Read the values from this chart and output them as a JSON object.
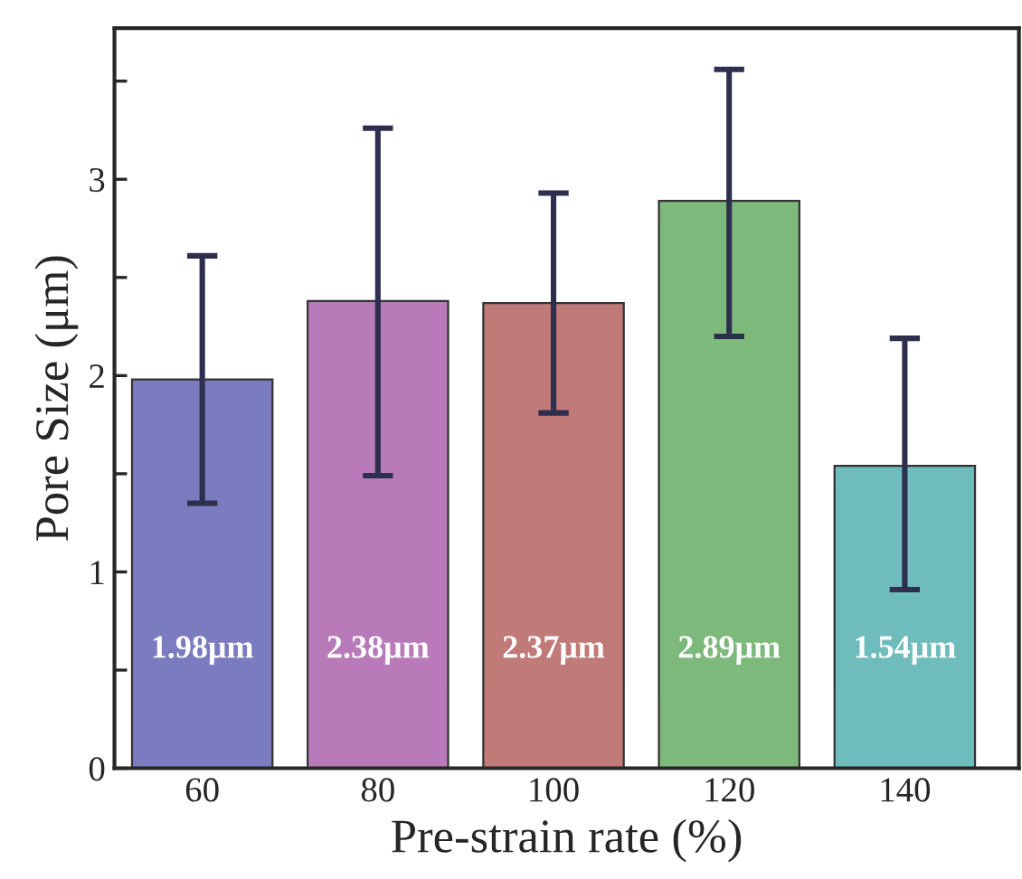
{
  "chart_data": {
    "type": "bar",
    "xlabel": "Pre-strain rate (%)",
    "ylabel": "Pore Size (μm)",
    "categories": [
      "60",
      "80",
      "100",
      "120",
      "140"
    ],
    "values": [
      1.98,
      2.38,
      2.37,
      2.89,
      1.54
    ],
    "colors": [
      "#7b7bbf",
      "#b87ab9",
      "#c07a78",
      "#7cb97b",
      "#6fbcbc"
    ],
    "errors": [
      [
        1.35,
        2.61
      ],
      [
        1.49,
        3.26
      ],
      [
        1.81,
        2.93
      ],
      [
        2.2,
        3.56
      ],
      [
        0.91,
        2.19
      ]
    ],
    "value_labels": [
      "1.98μm",
      "2.38μm",
      "2.37μm",
      "2.89μm",
      "1.54μm"
    ],
    "ylim": [
      0,
      3.77
    ],
    "yticks": [
      0,
      {
        "value": 0.5,
        "label": null
      },
      1,
      {
        "value": 1.5,
        "label": null
      },
      2,
      {
        "value": 2.5,
        "label": null
      },
      3,
      {
        "value": 3.5,
        "label": null
      }
    ],
    "grid": false,
    "legend": false
  }
}
